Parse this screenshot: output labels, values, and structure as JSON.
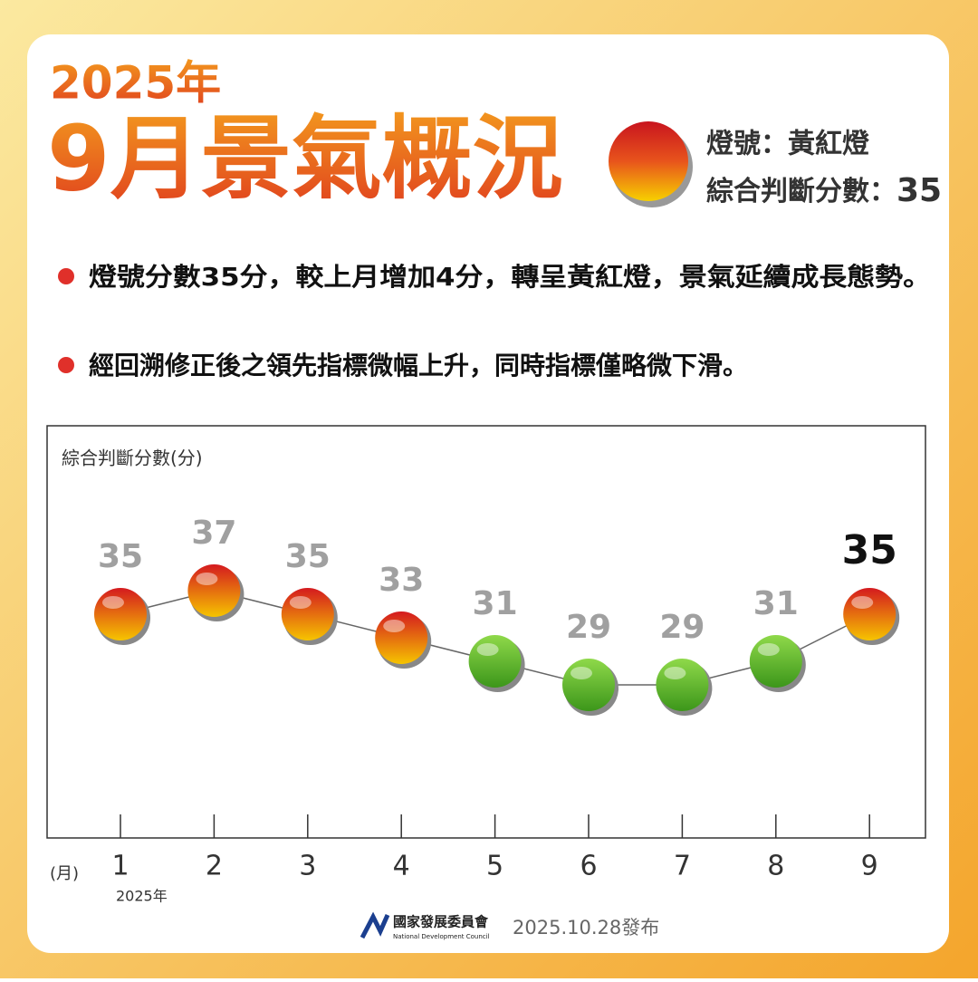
{
  "header": {
    "year": "2025年",
    "title": "9月景氣概況",
    "signal": "燈號：黃紅燈",
    "score_label": "綜合判斷分數：",
    "score": 35
  },
  "bullets": [
    "燈號分數35分，較上月增加4分，轉呈黃紅燈，景氣延續成長態勢。",
    "經回溯修正後之領先指標微幅上升，同時指標僅略微下滑。"
  ],
  "footer": {
    "org": "國家發展委員會",
    "org_en": "National Development Council",
    "date": "2025.10.28發布"
  },
  "chart_data": {
    "type": "line",
    "y_label": "綜合判斷分數(分)",
    "x_label": "(月)",
    "x_sublabel": "2025年",
    "categories": [
      "1",
      "2",
      "3",
      "4",
      "5",
      "6",
      "7",
      "8",
      "9"
    ],
    "values": [
      35,
      37,
      35,
      33,
      31,
      29,
      29,
      31,
      35
    ],
    "point_colors": [
      [
        "#d41a1f",
        "#f6c400"
      ],
      [
        "#d41a1f",
        "#f6c400"
      ],
      [
        "#d41a1f",
        "#f6c400"
      ],
      [
        "#d41a1f",
        "#f6c400"
      ],
      [
        "#8fd94a",
        "#3c961a"
      ],
      [
        "#8fd94a",
        "#3c961a"
      ],
      [
        "#8fd94a",
        "#3c961a"
      ],
      [
        "#8fd94a",
        "#3c961a"
      ],
      [
        "#d41a1f",
        "#f6c400"
      ]
    ],
    "ylim": [
      16,
      51
    ],
    "highlight_index": 8
  }
}
